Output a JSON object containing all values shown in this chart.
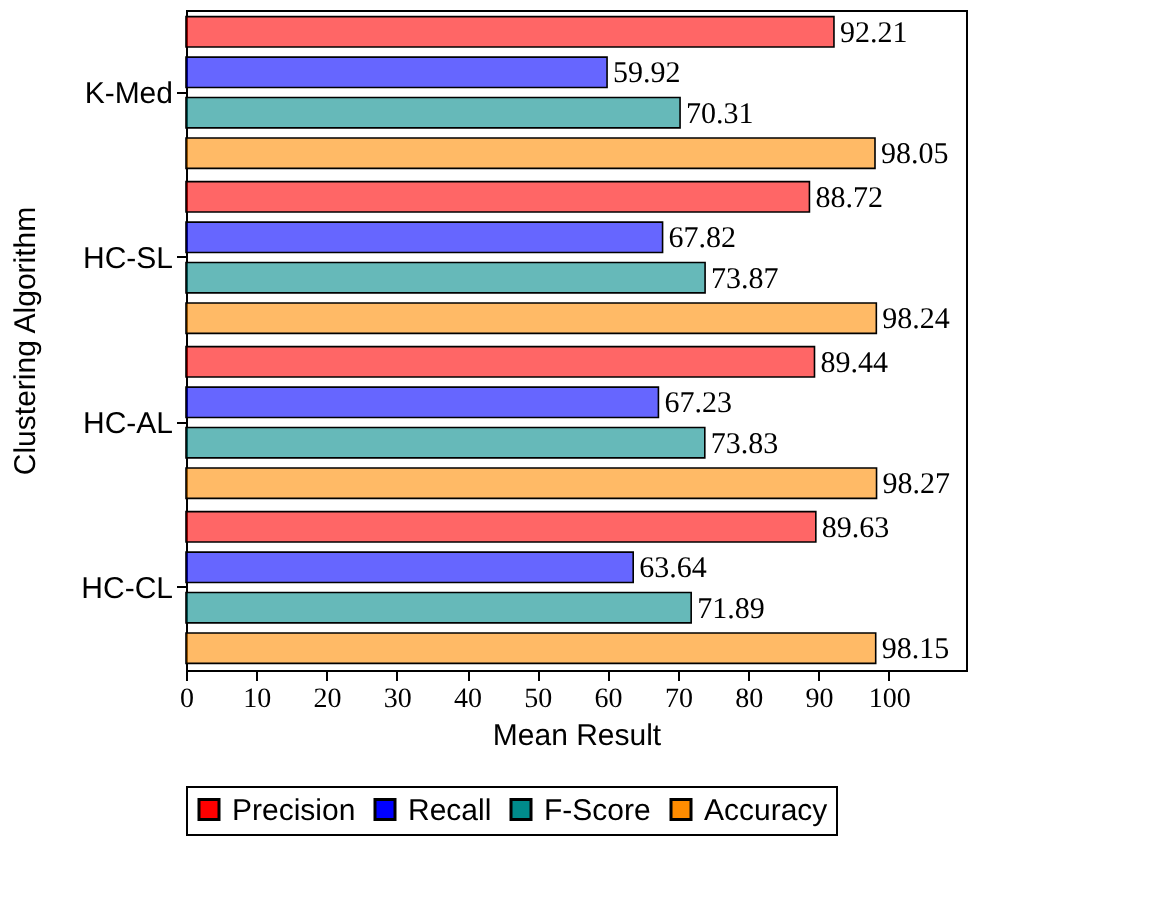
{
  "chart_data": {
    "type": "bar",
    "orientation": "horizontal",
    "xlabel": "Mean Result",
    "ylabel": "Clustering Algorithm",
    "categories": [
      "K-Med",
      "HC-SL",
      "HC-AL",
      "HC-CL"
    ],
    "series": [
      {
        "name": "Precision",
        "color": "#ff0000",
        "values": [
          92.21,
          88.72,
          89.44,
          89.63
        ]
      },
      {
        "name": "Recall",
        "color": "#0000ff",
        "values": [
          59.92,
          67.82,
          67.23,
          63.64
        ]
      },
      {
        "name": "F-Score",
        "color": "#008b8b",
        "values": [
          70.31,
          73.87,
          73.83,
          71.89
        ]
      },
      {
        "name": "Accuracy",
        "color": "#ff8c00",
        "values": [
          98.05,
          98.24,
          98.27,
          98.15
        ]
      }
    ],
    "xlim": [
      0,
      111
    ],
    "xticks": [
      0,
      10,
      20,
      30,
      40,
      50,
      60,
      70,
      80,
      90,
      100
    ],
    "data_labels": true,
    "grid": false,
    "legend": "bottom"
  }
}
